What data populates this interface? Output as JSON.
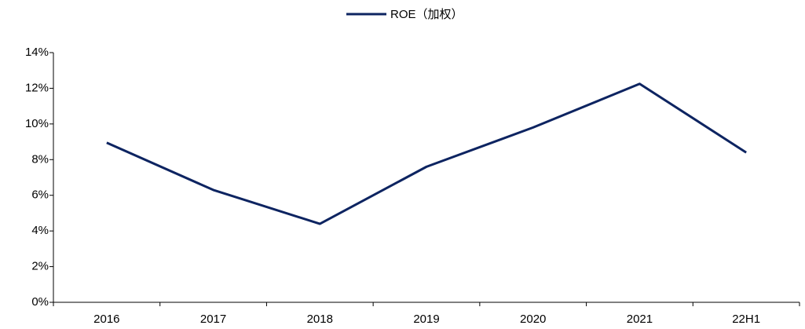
{
  "chart_data": {
    "type": "line",
    "categories": [
      "2016",
      "2017",
      "2018",
      "2019",
      "2020",
      "2021",
      "22H1"
    ],
    "series": [
      {
        "name": "ROE（加权）",
        "color": "#0d2461",
        "values": [
          8.95,
          6.3,
          4.4,
          7.6,
          9.8,
          12.25,
          8.4
        ]
      }
    ],
    "ylim": [
      0,
      14
    ],
    "yticks": [
      {
        "value": 0,
        "label": "0%"
      },
      {
        "value": 2,
        "label": "2%"
      },
      {
        "value": 4,
        "label": "4%"
      },
      {
        "value": 6,
        "label": "6%"
      },
      {
        "value": 8,
        "label": "8%"
      },
      {
        "value": 10,
        "label": "10%"
      },
      {
        "value": 12,
        "label": "12%"
      },
      {
        "value": 14,
        "label": "14%"
      }
    ],
    "grid": false,
    "legend": "top"
  }
}
